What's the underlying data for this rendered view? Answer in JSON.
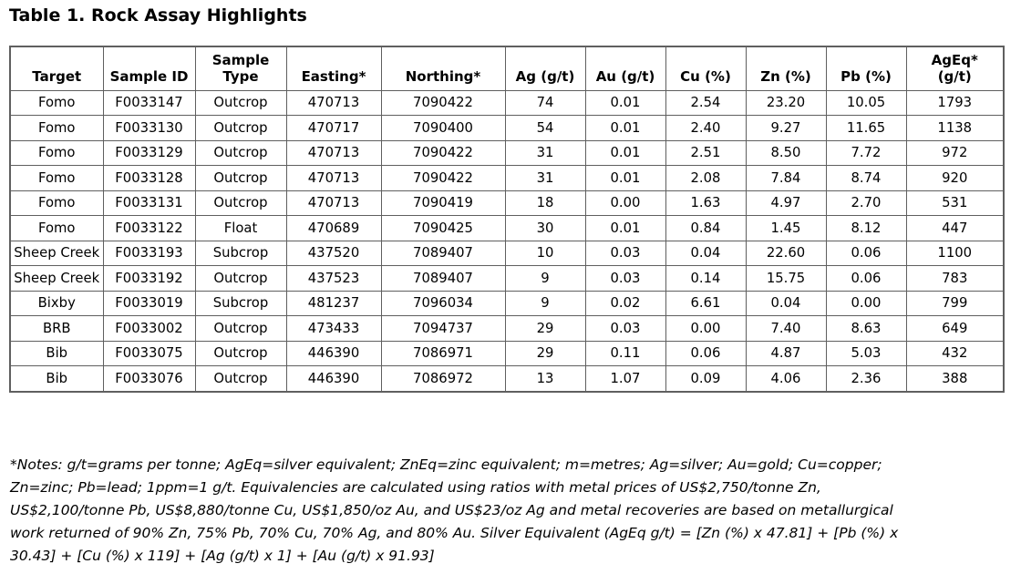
{
  "page": {
    "title": "Table 1. Rock Assay Highlights"
  },
  "assay_table": {
    "columns": [
      "Target",
      "Sample ID",
      "Sample\nType",
      "Easting*",
      "Northing*",
      "Ag (g/t)",
      "Au (g/t)",
      "Cu (%)",
      "Zn (%)",
      "Pb (%)",
      "AgEq*\n(g/t)"
    ],
    "rows": [
      [
        "Fomo",
        "F0033147",
        "Outcrop",
        "470713",
        "7090422",
        "74",
        "0.01",
        "2.54",
        "23.20",
        "10.05",
        "1793"
      ],
      [
        "Fomo",
        "F0033130",
        "Outcrop",
        "470717",
        "7090400",
        "54",
        "0.01",
        "2.40",
        "9.27",
        "11.65",
        "1138"
      ],
      [
        "Fomo",
        "F0033129",
        "Outcrop",
        "470713",
        "7090422",
        "31",
        "0.01",
        "2.51",
        "8.50",
        "7.72",
        "972"
      ],
      [
        "Fomo",
        "F0033128",
        "Outcrop",
        "470713",
        "7090422",
        "31",
        "0.01",
        "2.08",
        "7.84",
        "8.74",
        "920"
      ],
      [
        "Fomo",
        "F0033131",
        "Outcrop",
        "470713",
        "7090419",
        "18",
        "0.00",
        "1.63",
        "4.97",
        "2.70",
        "531"
      ],
      [
        "Fomo",
        "F0033122",
        "Float",
        "470689",
        "7090425",
        "30",
        "0.01",
        "0.84",
        "1.45",
        "8.12",
        "447"
      ],
      [
        "Sheep Creek",
        "F0033193",
        "Subcrop",
        "437520",
        "7089407",
        "10",
        "0.03",
        "0.04",
        "22.60",
        "0.06",
        "1100"
      ],
      [
        "Sheep Creek",
        "F0033192",
        "Outcrop",
        "437523",
        "7089407",
        "9",
        "0.03",
        "0.14",
        "15.75",
        "0.06",
        "783"
      ],
      [
        "Bixby",
        "F0033019",
        "Subcrop",
        "481237",
        "7096034",
        "9",
        "0.02",
        "6.61",
        "0.04",
        "0.00",
        "799"
      ],
      [
        "BRB",
        "F0033002",
        "Outcrop",
        "473433",
        "7094737",
        "29",
        "0.03",
        "0.00",
        "7.40",
        "8.63",
        "649"
      ],
      [
        "Bib",
        "F0033075",
        "Outcrop",
        "446390",
        "7086971",
        "29",
        "0.11",
        "0.06",
        "4.87",
        "5.03",
        "432"
      ],
      [
        "Bib",
        "F0033076",
        "Outcrop",
        "446390",
        "7086972",
        "13",
        "1.07",
        "0.09",
        "4.06",
        "2.36",
        "388"
      ]
    ]
  },
  "notes": {
    "lines": [
      "*Notes: g/t=grams per tonne; AgEq=silver equivalent; ZnEq=zinc equivalent; m=metres; Ag=silver; Au=gold; Cu=copper;",
      "Zn=zinc; Pb=lead; 1ppm=1 g/t. Equivalencies are calculated using ratios with metal prices of US$2,750/tonne Zn,",
      "US$2,100/tonne Pb, US$8,880/tonne Cu, US$1,850/oz Au, and US$23/oz Ag and metal recoveries are based on metallurgical",
      "work returned of 90% Zn, 75% Pb, 70% Cu, 70% Ag, and 80% Au. Silver Equivalent (AgEq g/t) = [Zn (%) x 47.81] + [Pb (%) x",
      "30.43] + [Cu (%) x 119] + [Ag (g/t) x 1] + [Au (g/t) x 91.93]"
    ]
  }
}
